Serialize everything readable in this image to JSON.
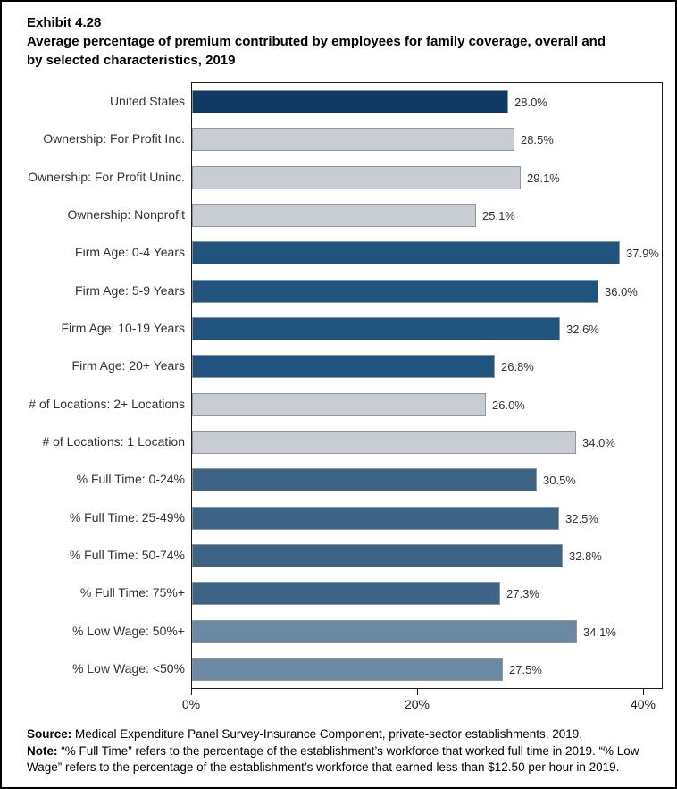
{
  "page": {
    "exhibit": "Exhibit 4.28",
    "title_line1": "Average percentage of premium contributed by employees for family coverage, overall and",
    "title_line2": "by selected characteristics, 2019"
  },
  "chart_data": {
    "type": "bar",
    "orientation": "horizontal",
    "title": "Average percentage of premium contributed by employees for family coverage, overall and by selected characteristics, 2019",
    "xlabel": "",
    "ylabel": "",
    "xlim": [
      0,
      41.6
    ],
    "grid": false,
    "legend": "none",
    "x_ticks": [
      {
        "value": 0,
        "label": "0%"
      },
      {
        "value": 20,
        "label": "20%"
      },
      {
        "value": 40,
        "label": "40%"
      }
    ],
    "bars": [
      {
        "category": "United States",
        "value": 28.0,
        "label": "28.0%",
        "color_key": "navy"
      },
      {
        "category": "Ownership: For Profit Inc.",
        "value": 28.5,
        "label": "28.5%",
        "color_key": "gray"
      },
      {
        "category": "Ownership: For Profit Uninc.",
        "value": 29.1,
        "label": "29.1%",
        "color_key": "gray"
      },
      {
        "category": "Ownership: Nonprofit",
        "value": 25.1,
        "label": "25.1%",
        "color_key": "gray"
      },
      {
        "category": "Firm Age: 0-4 Years",
        "value": 37.9,
        "label": "37.9%",
        "color_key": "blue_dark"
      },
      {
        "category": "Firm Age: 5-9 Years",
        "value": 36.0,
        "label": "36.0%",
        "color_key": "blue_dark"
      },
      {
        "category": "Firm Age: 10-19 Years",
        "value": 32.6,
        "label": "32.6%",
        "color_key": "blue_dark"
      },
      {
        "category": "Firm Age: 20+ Years",
        "value": 26.8,
        "label": "26.8%",
        "color_key": "blue_dark"
      },
      {
        "category": "# of Locations: 2+ Locations",
        "value": 26.0,
        "label": "26.0%",
        "color_key": "gray"
      },
      {
        "category": "# of Locations: 1 Location",
        "value": 34.0,
        "label": "34.0%",
        "color_key": "gray"
      },
      {
        "category": "% Full Time: 0-24%",
        "value": 30.5,
        "label": "30.5%",
        "color_key": "blue_mid"
      },
      {
        "category": "% Full Time: 25-49%",
        "value": 32.5,
        "label": "32.5%",
        "color_key": "blue_mid"
      },
      {
        "category": "% Full Time: 50-74%",
        "value": 32.8,
        "label": "32.8%",
        "color_key": "blue_mid"
      },
      {
        "category": "% Full Time: 75%+",
        "value": 27.3,
        "label": "27.3%",
        "color_key": "blue_mid"
      },
      {
        "category": "% Low Wage: 50%+",
        "value": 34.1,
        "label": "34.1%",
        "color_key": "blue_light"
      },
      {
        "category": "% Low Wage: <50%",
        "value": 27.5,
        "label": "27.5%",
        "color_key": "blue_light"
      }
    ],
    "colors": {
      "navy": "#0e3a63",
      "gray": "#c7cdd2",
      "blue_dark": "#20547e",
      "blue_mid": "#3d6485",
      "blue_light": "#6b89a3",
      "bar_border": "#8f969c"
    }
  },
  "footer": {
    "source_label": "Source:",
    "source_text": " Medical Expenditure Panel Survey-Insurance Component, private-sector establishments, 2019.",
    "note_label": "Note:",
    "note_text": " “% Full Time” refers to the percentage of the establishment’s workforce that worked full time in 2019. “% Low Wage” refers to the percentage of the establishment’s workforce that earned less than $12.50 per hour in 2019."
  }
}
